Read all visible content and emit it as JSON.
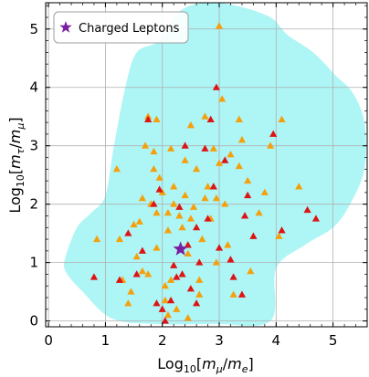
{
  "chart_data": {
    "type": "scatter",
    "xlabel": "Log10[mμ/me]",
    "ylabel": "Log10[mτ/mμ]",
    "xlim": [
      -0.05,
      5.6
    ],
    "ylim": [
      -0.1,
      5.45
    ],
    "x_ticks": [
      "0",
      "1",
      "2",
      "3",
      "4",
      "5"
    ],
    "y_ticks": [
      "0",
      "1",
      "2",
      "3",
      "4",
      "5"
    ],
    "grid": true,
    "legend": {
      "placement": "top-left",
      "entries": [
        "Charged Leptons"
      ]
    },
    "colors": {
      "region": "#aef5f5",
      "orange": "#f5a00a",
      "red": "#dc1414",
      "star": "#7b1fa2"
    },
    "region": [
      [
        0.3,
        1.1
      ],
      [
        0.5,
        1.6
      ],
      [
        0.75,
        1.85
      ],
      [
        1.0,
        2.15
      ],
      [
        1.15,
        3.0
      ],
      [
        1.35,
        4.0
      ],
      [
        1.55,
        4.6
      ],
      [
        1.95,
        4.8
      ],
      [
        2.3,
        5.3
      ],
      [
        2.75,
        5.45
      ],
      [
        3.3,
        5.4
      ],
      [
        3.9,
        5.2
      ],
      [
        4.2,
        4.9
      ],
      [
        4.65,
        4.6
      ],
      [
        5.05,
        4.2
      ],
      [
        5.35,
        3.9
      ],
      [
        5.55,
        3.4
      ],
      [
        5.55,
        2.6
      ],
      [
        5.3,
        2.0
      ],
      [
        5.0,
        1.6
      ],
      [
        4.5,
        1.3
      ],
      [
        4.0,
        0.9
      ],
      [
        3.9,
        0.0
      ],
      [
        2.9,
        -0.05
      ],
      [
        1.8,
        -0.05
      ],
      [
        1.1,
        0.05
      ],
      [
        0.6,
        0.5
      ],
      [
        0.3,
        0.85
      ]
    ],
    "series": [
      {
        "name": "",
        "marker": "triangle",
        "color": "orange",
        "points": [
          [
            1.2,
            2.6
          ],
          [
            1.25,
            1.4
          ],
          [
            1.3,
            0.7
          ],
          [
            1.4,
            0.3
          ],
          [
            1.5,
            1.65
          ],
          [
            1.55,
            1.1
          ],
          [
            1.6,
            1.7
          ],
          [
            1.65,
            2.1
          ],
          [
            1.65,
            0.85
          ],
          [
            1.7,
            3.0
          ],
          [
            1.75,
            3.5
          ],
          [
            1.75,
            0.8
          ],
          [
            1.8,
            2.0
          ],
          [
            1.85,
            2.9
          ],
          [
            1.85,
            2.6
          ],
          [
            1.9,
            1.85
          ],
          [
            1.9,
            1.25
          ],
          [
            1.95,
            2.45
          ],
          [
            2.0,
            2.2
          ],
          [
            2.05,
            0.6
          ],
          [
            2.05,
            0.35
          ],
          [
            2.1,
            1.55
          ],
          [
            2.1,
            0.1
          ],
          [
            2.15,
            2.95
          ],
          [
            2.2,
            2.3
          ],
          [
            2.2,
            2.0
          ],
          [
            2.25,
            0.2
          ],
          [
            2.3,
            1.8
          ],
          [
            2.35,
            1.6
          ],
          [
            2.4,
            2.75
          ],
          [
            2.4,
            2.15
          ],
          [
            2.45,
            1.15
          ],
          [
            2.5,
            3.35
          ],
          [
            2.55,
            1.95
          ],
          [
            2.6,
            2.6
          ],
          [
            2.65,
            0.7
          ],
          [
            2.65,
            0.45
          ],
          [
            2.7,
            1.4
          ],
          [
            2.75,
            3.5
          ],
          [
            2.8,
            2.3
          ],
          [
            2.85,
            1.75
          ],
          [
            2.9,
            2.95
          ],
          [
            2.95,
            2.1
          ],
          [
            2.95,
            1.0
          ],
          [
            3.0,
            2.7
          ],
          [
            3.05,
            3.8
          ],
          [
            3.1,
            2.0
          ],
          [
            3.15,
            1.3
          ],
          [
            3.2,
            2.85
          ],
          [
            3.25,
            0.45
          ],
          [
            3.35,
            2.65
          ],
          [
            3.4,
            3.1
          ],
          [
            3.5,
            2.4
          ],
          [
            3.55,
            0.85
          ],
          [
            3.7,
            1.85
          ],
          [
            3.8,
            2.2
          ],
          [
            3.9,
            3.0
          ],
          [
            4.05,
            1.45
          ],
          [
            4.1,
            3.45
          ],
          [
            4.4,
            2.3
          ],
          [
            0.85,
            1.4
          ],
          [
            1.45,
            0.5
          ],
          [
            2.15,
            0.7
          ],
          [
            2.5,
            1.75
          ],
          [
            2.75,
            2.1
          ],
          [
            3.0,
            5.05
          ],
          [
            3.35,
            3.45
          ],
          [
            2.45,
            0.05
          ],
          [
            2.1,
            1.85
          ],
          [
            1.9,
            3.45
          ]
        ]
      },
      {
        "name": "",
        "marker": "triangle",
        "color": "red",
        "points": [
          [
            0.8,
            0.75
          ],
          [
            1.25,
            0.7
          ],
          [
            1.4,
            1.5
          ],
          [
            1.55,
            0.8
          ],
          [
            1.65,
            1.2
          ],
          [
            1.75,
            3.45
          ],
          [
            1.85,
            2.0
          ],
          [
            1.9,
            0.3
          ],
          [
            2.0,
            0.2
          ],
          [
            2.05,
            0.0
          ],
          [
            2.15,
            0.35
          ],
          [
            2.2,
            0.95
          ],
          [
            2.25,
            0.75
          ],
          [
            2.3,
            1.95
          ],
          [
            2.35,
            0.8
          ],
          [
            2.4,
            3.0
          ],
          [
            2.45,
            1.3
          ],
          [
            2.5,
            0.55
          ],
          [
            2.6,
            0.3
          ],
          [
            2.65,
            1.0
          ],
          [
            2.75,
            2.95
          ],
          [
            2.8,
            1.75
          ],
          [
            2.85,
            3.45
          ],
          [
            2.9,
            2.3
          ],
          [
            2.95,
            4.0
          ],
          [
            3.0,
            1.25
          ],
          [
            3.1,
            2.75
          ],
          [
            3.2,
            1.05
          ],
          [
            3.25,
            0.75
          ],
          [
            3.4,
            0.45
          ],
          [
            3.45,
            1.8
          ],
          [
            3.5,
            2.15
          ],
          [
            3.6,
            1.45
          ],
          [
            3.95,
            3.2
          ],
          [
            4.1,
            1.55
          ],
          [
            4.55,
            1.9
          ],
          [
            4.7,
            1.75
          ],
          [
            1.95,
            2.25
          ],
          [
            2.6,
            1.6
          ]
        ]
      }
    ],
    "star": {
      "label": "Charged Leptons",
      "x": 2.32,
      "y": 1.23
    }
  }
}
